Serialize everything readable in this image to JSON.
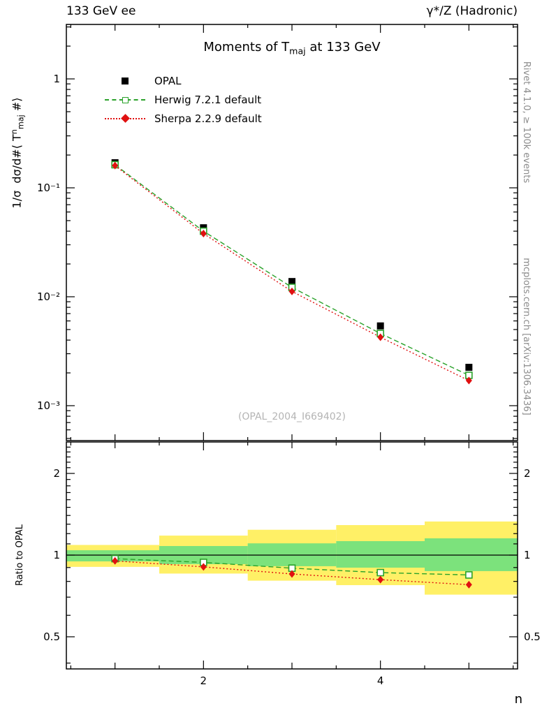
{
  "colors": {
    "opal": "#000000",
    "herwig": "#2aa22a",
    "sherpa": "#e01010",
    "band_yellow": "#fff066",
    "band_green": "#7ce27c",
    "credits_gray": "#8c8c8c",
    "watermark_gray": "#b4b4b4"
  },
  "header": {
    "left": "133 GeV ee",
    "right": "γ*/Z (Hadronic)"
  },
  "title": {
    "pre": "Moments of T",
    "sub": "maj",
    "post": " at 133 GeV"
  },
  "y_label": {
    "a": "1/σ  dσ/d#⟨ T",
    "sup": "n",
    "sub": "maj",
    "b": " #⟩"
  },
  "ratio_label": "Ratio to OPAL",
  "x_label": "n",
  "watermark": "(OPAL_2004_I669402)",
  "credits": {
    "top_right": "Rivet 4.1.0, ≥ 100k events",
    "bottom_right": "mcplots.cern.ch [arXiv:1306.3436]"
  },
  "legend": [
    {
      "label": "OPAL",
      "marker": "square-filled",
      "line": "none",
      "color": "#000000"
    },
    {
      "label": "Herwig 7.2.1 default",
      "marker": "square-open",
      "line": "dashed",
      "color": "#2aa22a"
    },
    {
      "label": "Sherpa 2.2.9 default",
      "marker": "diamond-filled",
      "line": "dotted",
      "color": "#e01010"
    }
  ],
  "chart_data": {
    "type": "line",
    "title": "Moments of Tmaj at 133 GeV",
    "xlabel": "n",
    "ylabel": "1/σ dσ/d#⟨ T^n_maj #⟩",
    "x": [
      1,
      2,
      3,
      4,
      5
    ],
    "xlim": [
      0.45,
      5.55
    ],
    "x_ticks_labeled": [
      2,
      4
    ],
    "main_panel": {
      "yscale": "log",
      "ylim": [
        0.00047,
        3.16
      ],
      "yticks": [
        {
          "v": 1,
          "label": "1"
        },
        {
          "v": 0.1,
          "label": "10⁻¹"
        },
        {
          "v": 0.01,
          "label": "10⁻²"
        },
        {
          "v": 0.001,
          "label": "10⁻³"
        }
      ],
      "series": [
        {
          "name": "OPAL",
          "values": [
            0.17,
            0.043,
            0.0138,
            0.0054,
            0.00225
          ]
        },
        {
          "name": "Herwig 7.2.1 default",
          "values": [
            0.163,
            0.04,
            0.0122,
            0.0046,
            0.0019
          ]
        },
        {
          "name": "Sherpa 2.2.9 default",
          "values": [
            0.16,
            0.038,
            0.0112,
            0.00425,
            0.0017
          ]
        }
      ]
    },
    "ratio_panel": {
      "yscale": "log",
      "ylim": [
        0.381,
        2.61
      ],
      "ref": 1,
      "yticks": [
        {
          "v": 0.5,
          "label": "0.5"
        },
        {
          "v": 1,
          "label": "1"
        },
        {
          "v": 2,
          "label": "2"
        }
      ],
      "series": [
        {
          "name": "Herwig 7.2.1 default",
          "values": [
            0.97,
            0.94,
            0.895,
            0.862,
            0.845
          ]
        },
        {
          "name": "Sherpa 2.2.9 default",
          "values": [
            0.952,
            0.905,
            0.852,
            0.812,
            0.778
          ]
        }
      ],
      "bands": {
        "edges": [
          0.45,
          1.5,
          2.5,
          3.5,
          4.5,
          5.55
        ],
        "yellow": [
          [
            0.905,
            1.09
          ],
          [
            0.855,
            1.18
          ],
          [
            0.805,
            1.24
          ],
          [
            0.775,
            1.29
          ],
          [
            0.715,
            1.33
          ]
        ],
        "green": [
          [
            0.948,
            1.042
          ],
          [
            0.926,
            1.08
          ],
          [
            0.91,
            1.105
          ],
          [
            0.899,
            1.126
          ],
          [
            0.873,
            1.153
          ]
        ]
      }
    }
  }
}
